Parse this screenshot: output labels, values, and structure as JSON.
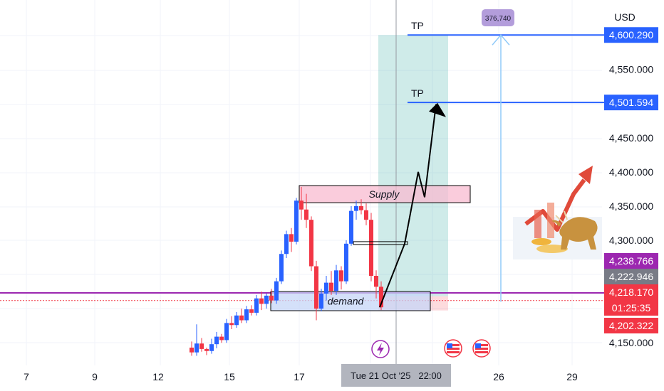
{
  "chart_data": {
    "type": "candlestick",
    "currency": "USD",
    "grid": true,
    "x_ticks": [
      "7",
      "9",
      "12",
      "15",
      "17",
      "26",
      "29"
    ],
    "crosshair_label": "Tue 21 Oct '25   22:00",
    "y_ticks": [
      {
        "value": 4600.29,
        "label": "4,600.290",
        "style": "blue"
      },
      {
        "value": 4550,
        "label": "4,550.000",
        "style": "plain"
      },
      {
        "value": 4501.594,
        "label": "4,501.594",
        "style": "blue"
      },
      {
        "value": 4450,
        "label": "4,450.000",
        "style": "plain"
      },
      {
        "value": 4400,
        "label": "4,400.000",
        "style": "plain"
      },
      {
        "value": 4350,
        "label": "4,350.000",
        "style": "plain"
      },
      {
        "value": 4300,
        "label": "4,300.000",
        "style": "plain"
      },
      {
        "value": 4150,
        "label": "4,150.000",
        "style": "plain"
      }
    ],
    "price_tags": [
      {
        "value": 4238.766,
        "label": "4,238.766",
        "color": "#9c27b0"
      },
      {
        "value": 4222.946,
        "label": "4,222.946",
        "color": "#787b86"
      },
      {
        "value": 4218.17,
        "label": "4,218.170",
        "sub": "01:25:35",
        "color": "#f23645"
      },
      {
        "value": 4202.322,
        "label": "4,202.322",
        "color": "#f23645"
      }
    ],
    "zones": [
      {
        "label": "Supply",
        "top": 4380,
        "bottom": 4355,
        "x0": 420,
        "x1": 660
      },
      {
        "label": "demand",
        "top": 4225,
        "bottom": 4197,
        "x0": 380,
        "x1": 604
      }
    ],
    "tp_labels": [
      "TP",
      "TP"
    ],
    "tp_levels": [
      4600.29,
      4501.594
    ],
    "distance_label": "376,740",
    "support_level": 4223,
    "candles": [
      {
        "x": 269,
        "o": 4143,
        "h": 4152,
        "l": 4131,
        "c": 4136
      },
      {
        "x": 276,
        "o": 4136,
        "h": 4177,
        "l": 4131,
        "c": 4149
      },
      {
        "x": 283,
        "o": 4149,
        "h": 4157,
        "l": 4137,
        "c": 4141
      },
      {
        "x": 290,
        "o": 4141,
        "h": 4143,
        "l": 4132,
        "c": 4138
      },
      {
        "x": 297,
        "o": 4138,
        "h": 4156,
        "l": 4134,
        "c": 4148
      },
      {
        "x": 304,
        "o": 4148,
        "h": 4166,
        "l": 4142,
        "c": 4159
      },
      {
        "x": 311,
        "o": 4159,
        "h": 4163,
        "l": 4150,
        "c": 4154
      },
      {
        "x": 318,
        "o": 4154,
        "h": 4185,
        "l": 4150,
        "c": 4179
      },
      {
        "x": 325,
        "o": 4179,
        "h": 4189,
        "l": 4170,
        "c": 4176
      },
      {
        "x": 332,
        "o": 4176,
        "h": 4195,
        "l": 4172,
        "c": 4190
      },
      {
        "x": 339,
        "o": 4190,
        "h": 4200,
        "l": 4179,
        "c": 4183
      },
      {
        "x": 346,
        "o": 4183,
        "h": 4204,
        "l": 4179,
        "c": 4199
      },
      {
        "x": 353,
        "o": 4199,
        "h": 4205,
        "l": 4190,
        "c": 4194
      },
      {
        "x": 360,
        "o": 4194,
        "h": 4220,
        "l": 4190,
        "c": 4215
      },
      {
        "x": 367,
        "o": 4215,
        "h": 4225,
        "l": 4198,
        "c": 4207
      },
      {
        "x": 374,
        "o": 4207,
        "h": 4222,
        "l": 4200,
        "c": 4219
      },
      {
        "x": 381,
        "o": 4219,
        "h": 4229,
        "l": 4208,
        "c": 4212
      },
      {
        "x": 388,
        "o": 4212,
        "h": 4245,
        "l": 4207,
        "c": 4240
      },
      {
        "x": 395,
        "o": 4240,
        "h": 4285,
        "l": 4236,
        "c": 4280
      },
      {
        "x": 402,
        "o": 4280,
        "h": 4314,
        "l": 4274,
        "c": 4309
      },
      {
        "x": 409,
        "o": 4309,
        "h": 4318,
        "l": 4283,
        "c": 4298
      },
      {
        "x": 416,
        "o": 4298,
        "h": 4362,
        "l": 4294,
        "c": 4358
      },
      {
        "x": 423,
        "o": 4358,
        "h": 4378,
        "l": 4330,
        "c": 4345
      },
      {
        "x": 430,
        "o": 4345,
        "h": 4368,
        "l": 4318,
        "c": 4330
      },
      {
        "x": 437,
        "o": 4330,
        "h": 4335,
        "l": 4255,
        "c": 4262
      },
      {
        "x": 444,
        "o": 4262,
        "h": 4270,
        "l": 4183,
        "c": 4200
      },
      {
        "x": 451,
        "o": 4200,
        "h": 4229,
        "l": 4196,
        "c": 4222
      },
      {
        "x": 458,
        "o": 4222,
        "h": 4248,
        "l": 4212,
        "c": 4238
      },
      {
        "x": 465,
        "o": 4238,
        "h": 4255,
        "l": 4220,
        "c": 4226
      },
      {
        "x": 472,
        "o": 4226,
        "h": 4264,
        "l": 4220,
        "c": 4256
      },
      {
        "x": 479,
        "o": 4256,
        "h": 4262,
        "l": 4228,
        "c": 4240
      },
      {
        "x": 486,
        "o": 4240,
        "h": 4300,
        "l": 4236,
        "c": 4295
      },
      {
        "x": 493,
        "o": 4295,
        "h": 4350,
        "l": 4292,
        "c": 4343
      },
      {
        "x": 500,
        "o": 4343,
        "h": 4358,
        "l": 4330,
        "c": 4350
      },
      {
        "x": 507,
        "o": 4350,
        "h": 4360,
        "l": 4338,
        "c": 4344
      },
      {
        "x": 514,
        "o": 4344,
        "h": 4354,
        "l": 4322,
        "c": 4330
      },
      {
        "x": 521,
        "o": 4330,
        "h": 4340,
        "l": 4240,
        "c": 4248
      },
      {
        "x": 528,
        "o": 4248,
        "h": 4256,
        "l": 4215,
        "c": 4232
      },
      {
        "x": 535,
        "o": 4232,
        "h": 4240,
        "l": 4198,
        "c": 4202
      }
    ]
  }
}
